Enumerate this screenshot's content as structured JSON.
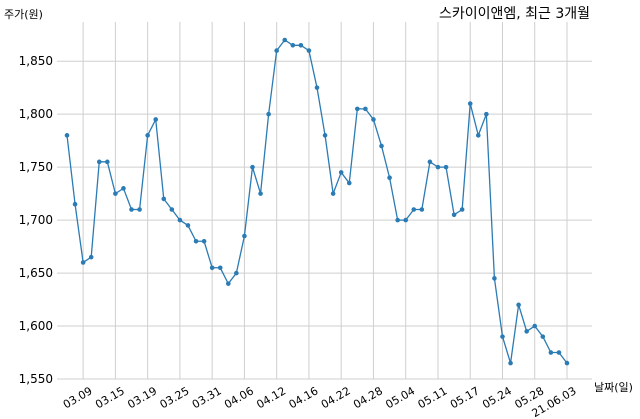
{
  "chart_data": {
    "type": "line",
    "title": "스카이이앤엠, 최근 3개월",
    "y_label": "주가(원)",
    "x_label": "날짜(일)",
    "categories": [
      null,
      null,
      "03.09",
      null,
      null,
      null,
      "03.15",
      null,
      null,
      null,
      "03.19",
      null,
      null,
      null,
      "03.25",
      null,
      null,
      null,
      "03.31",
      null,
      null,
      null,
      "04.06",
      null,
      null,
      null,
      "04.12",
      null,
      null,
      null,
      "04.16",
      null,
      null,
      null,
      "04.22",
      null,
      null,
      null,
      "04.28",
      null,
      null,
      null,
      "05.04",
      null,
      null,
      null,
      "05.11",
      null,
      null,
      null,
      "05.17",
      null,
      null,
      null,
      "05.24",
      null,
      null,
      null,
      "05.28",
      null,
      null,
      null,
      "21.06.03"
    ],
    "series": [
      {
        "name": "주가",
        "color": "#2b7bb4",
        "values": [
          1780,
          1715,
          1660,
          1665,
          1755,
          1755,
          1725,
          1730,
          1710,
          1710,
          1780,
          1795,
          1720,
          1710,
          1700,
          1695,
          1680,
          1680,
          1655,
          1655,
          1640,
          1650,
          1685,
          1750,
          1725,
          1800,
          1860,
          1870,
          1865,
          1865,
          1860,
          1825,
          1780,
          1725,
          1745,
          1735,
          1805,
          1805,
          1795,
          1770,
          1740,
          1700,
          1700,
          1710,
          1710,
          1755,
          1750,
          1750,
          1705,
          1710,
          1810,
          1780,
          1800,
          1645,
          1590,
          1565,
          1620,
          1595,
          1600,
          1590,
          1575,
          1575,
          1565
        ]
      }
    ],
    "ylim": [
      1550,
      1887
    ],
    "yticks": [
      {
        "value": 1550,
        "label": "1,550"
      },
      {
        "value": 1600,
        "label": "1,600"
      },
      {
        "value": 1650,
        "label": "1,650"
      },
      {
        "value": 1700,
        "label": "1,700"
      },
      {
        "value": 1750,
        "label": "1,750"
      },
      {
        "value": 1800,
        "label": "1,800"
      },
      {
        "value": 1850,
        "label": "1,850"
      }
    ],
    "grid": true
  }
}
